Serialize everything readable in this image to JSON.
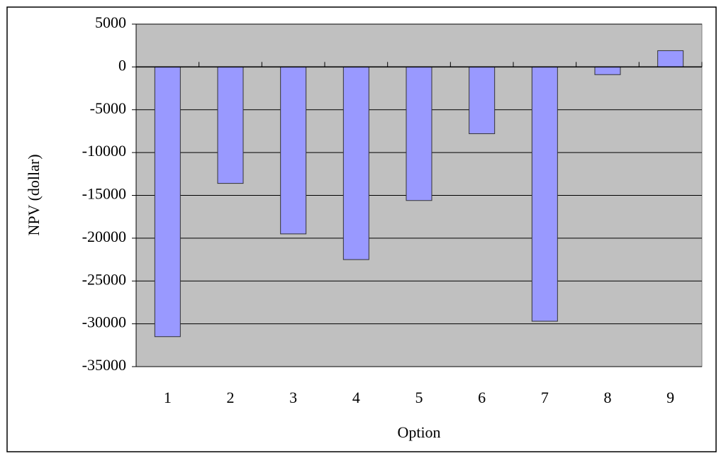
{
  "chart_data": {
    "type": "bar",
    "x_label": "Option",
    "y_label": "NPV (dollar)",
    "categories": [
      "1",
      "2",
      "3",
      "4",
      "5",
      "6",
      "7",
      "8",
      "9"
    ],
    "values": [
      -31500,
      -13600,
      -19500,
      -22500,
      -15600,
      -7800,
      -29700,
      -900,
      1900
    ],
    "color": "#9999ff",
    "ylim": [
      -35000,
      5000
    ],
    "yticks": [
      -35000,
      -30000,
      -25000,
      -20000,
      -15000,
      -10000,
      -5000,
      0,
      5000
    ],
    "grid": true
  }
}
